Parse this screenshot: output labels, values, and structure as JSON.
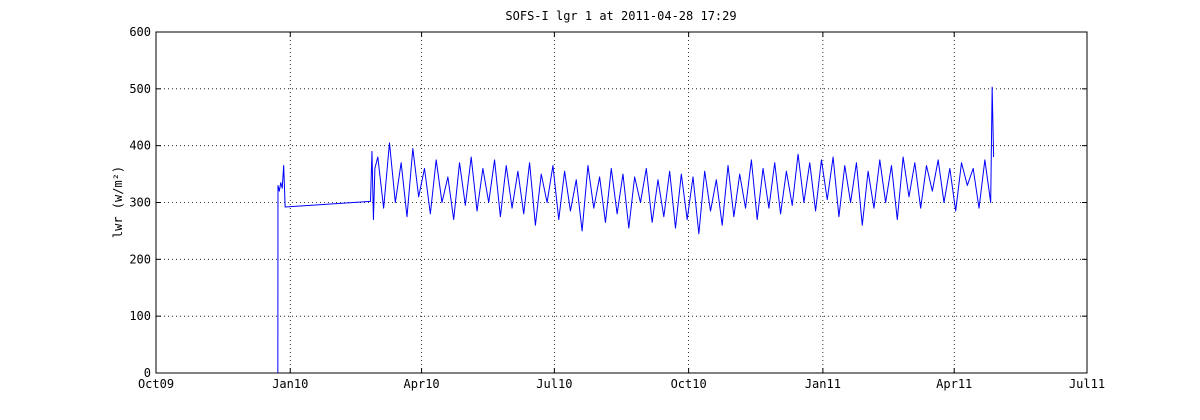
{
  "chart_data": {
    "type": "line",
    "title": "SOFS-I lgr 1 at 2011-04-28 17:29",
    "y_label": "lwr (w/m²)",
    "color": "#0000ff",
    "grid": true,
    "xlim": [
      0,
      638
    ],
    "xticks": [
      {
        "value": 0,
        "label": "Oct09"
      },
      {
        "value": 92,
        "label": "Jan10"
      },
      {
        "value": 182,
        "label": "Apr10"
      },
      {
        "value": 273,
        "label": "Jul10"
      },
      {
        "value": 365,
        "label": "Oct10"
      },
      {
        "value": 457,
        "label": "Jan11"
      },
      {
        "value": 547,
        "label": "Apr11"
      },
      {
        "value": 638,
        "label": "Jul11"
      }
    ],
    "ylim": [
      0,
      600
    ],
    "yticks": [
      0,
      100,
      200,
      300,
      400,
      500,
      600
    ],
    "x": [
      83.5,
      83.6,
      84.5,
      85.5,
      86.5,
      87.5,
      88,
      88.5,
      147,
      148,
      149,
      150,
      152,
      156,
      160,
      164,
      168,
      172,
      176,
      180,
      184,
      188,
      192,
      196,
      200,
      204,
      208,
      212,
      216,
      220,
      224,
      228,
      232,
      236,
      240,
      244,
      248,
      252,
      256,
      260,
      264,
      268,
      272,
      276,
      280,
      284,
      288,
      292,
      296,
      300,
      304,
      308,
      312,
      316,
      320,
      324,
      328,
      332,
      336,
      340,
      344,
      348,
      352,
      356,
      360,
      364,
      368,
      372,
      376,
      380,
      384,
      388,
      392,
      396,
      400,
      404,
      408,
      412,
      416,
      420,
      424,
      428,
      432,
      436,
      440,
      444,
      448,
      452,
      456,
      460,
      464,
      468,
      472,
      476,
      480,
      484,
      488,
      492,
      496,
      500,
      504,
      508,
      512,
      516,
      520,
      524,
      528,
      532,
      536,
      540,
      544,
      548,
      552,
      556,
      560,
      564,
      568,
      572,
      573,
      574
    ],
    "values": [
      0,
      330,
      320,
      335,
      325,
      365,
      330,
      292,
      302,
      390,
      270,
      360,
      380,
      290,
      405,
      300,
      370,
      275,
      395,
      310,
      360,
      280,
      375,
      300,
      345,
      270,
      370,
      295,
      380,
      285,
      360,
      300,
      375,
      275,
      365,
      290,
      355,
      280,
      370,
      260,
      350,
      300,
      365,
      270,
      355,
      285,
      340,
      250,
      365,
      290,
      345,
      265,
      360,
      280,
      350,
      255,
      345,
      300,
      360,
      265,
      340,
      275,
      355,
      255,
      350,
      270,
      345,
      245,
      355,
      285,
      340,
      260,
      365,
      275,
      350,
      290,
      375,
      270,
      360,
      290,
      370,
      280,
      355,
      295,
      385,
      300,
      370,
      285,
      375,
      305,
      380,
      275,
      365,
      300,
      370,
      260,
      355,
      290,
      375,
      300,
      365,
      270,
      380,
      310,
      370,
      290,
      365,
      320,
      375,
      300,
      360,
      285,
      370,
      330,
      360,
      290,
      375,
      300,
      503,
      380
    ]
  }
}
